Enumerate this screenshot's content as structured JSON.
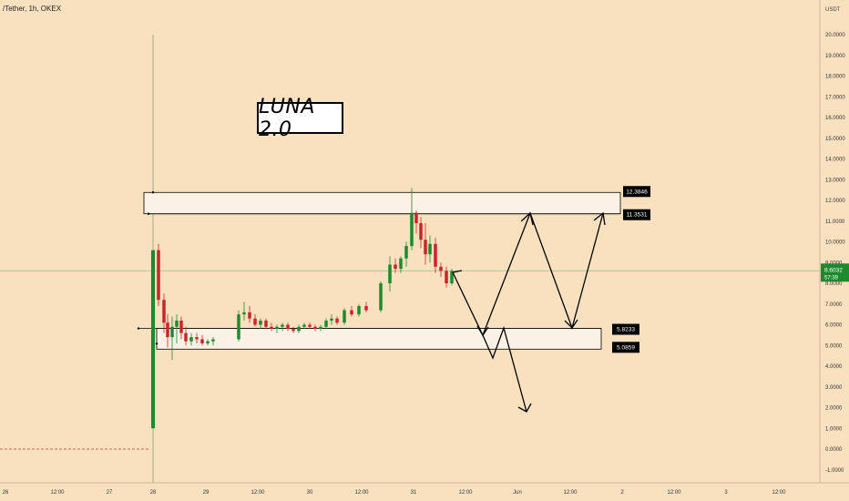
{
  "chart_data": {
    "type": "candlestick",
    "symbol": "/Tether, 1h, OKEX",
    "title": "LUNA 2.0",
    "currency": "USDT",
    "ylim": [
      -1.6,
      21.2
    ],
    "y_ticks": [
      "20.0000",
      "19.0000",
      "18.0000",
      "17.0000",
      "16.0000",
      "15.0000",
      "14.0000",
      "13.0000",
      "12.0000",
      "11.0000",
      "10.0000",
      "9.0000",
      "8.0000",
      "7.0000",
      "6.0000",
      "5.0000",
      "4.0000",
      "3.0000",
      "2.0000",
      "1.0000",
      "0.0000",
      "-1.0000"
    ],
    "x_ticks": [
      "26",
      "12:00",
      "27",
      "28",
      "29",
      "12:00",
      "30",
      "12:00",
      "31",
      "12:00",
      "Jun",
      "12:00",
      "2",
      "12:00",
      "3",
      "12:00"
    ],
    "last_price": {
      "value": "8.6032",
      "countdown": "57:39"
    },
    "levels": [
      {
        "label": "12.3846",
        "value": 12.3846
      },
      {
        "label": "11.3531",
        "value": 11.3531
      },
      {
        "label": "5.8233",
        "value": 5.8233
      },
      {
        "label": "5.0859",
        "value": 5.0859
      }
    ],
    "candles": [
      {
        "o": 1.0,
        "h": 9.6,
        "l": 1.0,
        "c": 9.6
      },
      {
        "o": 9.6,
        "h": 9.9,
        "l": 6.9,
        "c": 7.2
      },
      {
        "o": 7.2,
        "h": 7.5,
        "l": 5.6,
        "c": 6.1
      },
      {
        "o": 6.1,
        "h": 6.5,
        "l": 4.9,
        "c": 5.4
      },
      {
        "o": 5.4,
        "h": 6.4,
        "l": 4.3,
        "c": 5.9
      },
      {
        "o": 5.9,
        "h": 6.5,
        "l": 5.1,
        "c": 6.2
      },
      {
        "o": 6.2,
        "h": 6.4,
        "l": 5.3,
        "c": 5.6
      },
      {
        "o": 5.6,
        "h": 5.9,
        "l": 5.0,
        "c": 5.2
      },
      {
        "o": 5.2,
        "h": 5.6,
        "l": 5.0,
        "c": 5.4
      },
      {
        "o": 5.4,
        "h": 5.6,
        "l": 5.1,
        "c": 5.3
      },
      {
        "o": 5.3,
        "h": 5.5,
        "l": 5.0,
        "c": 5.1
      },
      {
        "o": 5.1,
        "h": 5.3,
        "l": 5.0,
        "c": 5.2
      },
      {
        "o": 5.2,
        "h": 5.4,
        "l": 5.0,
        "c": 5.3
      },
      {
        "o": 5.3,
        "h": 6.7,
        "l": 5.2,
        "c": 6.5
      },
      {
        "o": 6.5,
        "h": 7.1,
        "l": 6.2,
        "c": 6.6
      },
      {
        "o": 6.6,
        "h": 6.9,
        "l": 6.1,
        "c": 6.3
      },
      {
        "o": 6.3,
        "h": 6.5,
        "l": 5.9,
        "c": 6.0
      },
      {
        "o": 6.0,
        "h": 6.3,
        "l": 5.8,
        "c": 6.2
      },
      {
        "o": 6.2,
        "h": 6.3,
        "l": 5.8,
        "c": 5.9
      },
      {
        "o": 5.9,
        "h": 6.1,
        "l": 5.7,
        "c": 5.8
      },
      {
        "o": 5.8,
        "h": 6.0,
        "l": 5.6,
        "c": 5.9
      },
      {
        "o": 5.9,
        "h": 6.1,
        "l": 5.7,
        "c": 6.0
      },
      {
        "o": 6.0,
        "h": 6.1,
        "l": 5.7,
        "c": 5.8
      },
      {
        "o": 5.8,
        "h": 5.9,
        "l": 5.6,
        "c": 5.7
      },
      {
        "o": 5.7,
        "h": 6.0,
        "l": 5.6,
        "c": 5.9
      },
      {
        "o": 5.9,
        "h": 6.1,
        "l": 5.8,
        "c": 6.0
      },
      {
        "o": 6.0,
        "h": 6.1,
        "l": 5.8,
        "c": 5.9
      },
      {
        "o": 5.9,
        "h": 6.0,
        "l": 5.7,
        "c": 5.8
      },
      {
        "o": 5.8,
        "h": 6.0,
        "l": 5.7,
        "c": 5.9
      },
      {
        "o": 5.9,
        "h": 6.3,
        "l": 5.8,
        "c": 6.2
      },
      {
        "o": 6.2,
        "h": 6.5,
        "l": 6.0,
        "c": 6.3
      },
      {
        "o": 6.3,
        "h": 6.4,
        "l": 6.0,
        "c": 6.1
      },
      {
        "o": 6.1,
        "h": 6.8,
        "l": 6.0,
        "c": 6.7
      },
      {
        "o": 6.7,
        "h": 6.9,
        "l": 6.4,
        "c": 6.5
      },
      {
        "o": 6.5,
        "h": 7.0,
        "l": 6.4,
        "c": 6.9
      },
      {
        "o": 6.9,
        "h": 7.1,
        "l": 6.6,
        "c": 6.7
      },
      {
        "o": 6.7,
        "h": 8.1,
        "l": 6.6,
        "c": 8.0
      },
      {
        "o": 8.0,
        "h": 9.3,
        "l": 7.6,
        "c": 8.9
      },
      {
        "o": 8.9,
        "h": 9.2,
        "l": 8.5,
        "c": 8.7
      },
      {
        "o": 8.7,
        "h": 9.3,
        "l": 8.5,
        "c": 9.2
      },
      {
        "o": 9.2,
        "h": 10.0,
        "l": 8.8,
        "c": 9.8
      },
      {
        "o": 9.8,
        "h": 12.6,
        "l": 9.6,
        "c": 11.4
      },
      {
        "o": 11.4,
        "h": 11.5,
        "l": 10.4,
        "c": 10.9
      },
      {
        "o": 10.9,
        "h": 11.2,
        "l": 9.7,
        "c": 10.1
      },
      {
        "o": 10.1,
        "h": 10.9,
        "l": 8.9,
        "c": 9.4
      },
      {
        "o": 9.4,
        "h": 10.3,
        "l": 9.0,
        "c": 9.9
      },
      {
        "o": 9.9,
        "h": 10.2,
        "l": 8.5,
        "c": 8.8
      },
      {
        "o": 8.8,
        "h": 9.0,
        "l": 8.3,
        "c": 8.6
      },
      {
        "o": 8.6,
        "h": 8.8,
        "l": 7.8,
        "c": 8.0
      },
      {
        "o": 8.0,
        "h": 8.7,
        "l": 7.9,
        "c": 8.6
      }
    ]
  }
}
